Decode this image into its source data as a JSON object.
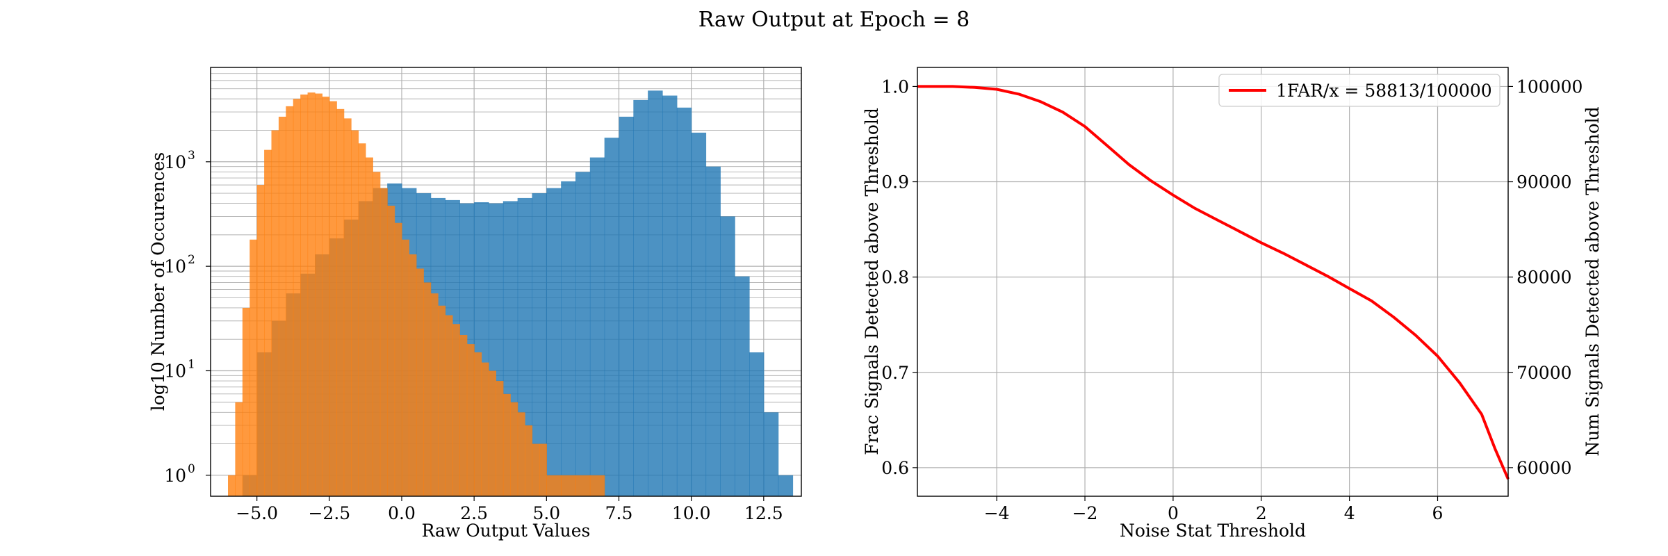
{
  "figure": {
    "title": "Raw Output at Epoch = 8"
  },
  "chart_data": [
    {
      "type": "bar",
      "subtype": "histogram",
      "xlabel": "Raw Output Values",
      "ylabel": "log10 Number of Occurences",
      "xlim": [
        -6.6,
        13.8
      ],
      "ylim": [
        0.63,
        8000
      ],
      "yscale": "log",
      "grid": true,
      "xticks": [
        -5.0,
        -2.5,
        0.0,
        2.5,
        5.0,
        7.5,
        10.0,
        12.5
      ],
      "xtick_labels": [
        "−5.0",
        "−2.5",
        "0.0",
        "2.5",
        "5.0",
        "7.5",
        "10.0",
        "12.5"
      ],
      "yticks": [
        1,
        10,
        100,
        1000
      ],
      "ytick_labels": [
        [
          "10",
          "0"
        ],
        [
          "10",
          "1"
        ],
        [
          "10",
          "2"
        ],
        [
          "10",
          "3"
        ]
      ],
      "series": [
        {
          "color": "#1f77b4",
          "alpha": 0.8,
          "points": [
            [
              -5.5,
              1
            ],
            [
              -5.0,
              15
            ],
            [
              -4.5,
              30
            ],
            [
              -4.0,
              55
            ],
            [
              -3.5,
              85
            ],
            [
              -3.0,
              130
            ],
            [
              -2.5,
              185
            ],
            [
              -2.0,
              280
            ],
            [
              -1.5,
              420
            ],
            [
              -1.0,
              560
            ],
            [
              -0.5,
              620
            ],
            [
              0.0,
              560
            ],
            [
              0.5,
              500
            ],
            [
              1.0,
              450
            ],
            [
              1.5,
              430
            ],
            [
              2.0,
              400
            ],
            [
              2.5,
              410
            ],
            [
              3.0,
              400
            ],
            [
              3.5,
              420
            ],
            [
              4.0,
              450
            ],
            [
              4.5,
              500
            ],
            [
              5.0,
              560
            ],
            [
              5.5,
              650
            ],
            [
              6.0,
              800
            ],
            [
              6.5,
              1100
            ],
            [
              7.0,
              1700
            ],
            [
              7.5,
              2700
            ],
            [
              8.0,
              3900
            ],
            [
              8.5,
              4800
            ],
            [
              9.0,
              4300
            ],
            [
              9.5,
              3300
            ],
            [
              10.0,
              1900
            ],
            [
              10.5,
              900
            ],
            [
              11.0,
              300
            ],
            [
              11.5,
              80
            ],
            [
              12.0,
              15
            ],
            [
              12.5,
              4
            ],
            [
              13.0,
              1
            ]
          ]
        },
        {
          "color": "#ff7f0e",
          "alpha": 0.8,
          "points": [
            [
              -6.0,
              1
            ],
            [
              -5.75,
              5
            ],
            [
              -5.5,
              40
            ],
            [
              -5.25,
              180
            ],
            [
              -5.0,
              600
            ],
            [
              -4.75,
              1300
            ],
            [
              -4.5,
              2000
            ],
            [
              -4.25,
              2700
            ],
            [
              -4.0,
              3400
            ],
            [
              -3.75,
              4000
            ],
            [
              -3.5,
              4400
            ],
            [
              -3.25,
              4600
            ],
            [
              -3.0,
              4500
            ],
            [
              -2.75,
              4200
            ],
            [
              -2.5,
              3800
            ],
            [
              -2.25,
              3200
            ],
            [
              -2.0,
              2600
            ],
            [
              -1.75,
              2000
            ],
            [
              -1.5,
              1500
            ],
            [
              -1.25,
              1100
            ],
            [
              -1.0,
              800
            ],
            [
              -0.75,
              560
            ],
            [
              -0.5,
              380
            ],
            [
              -0.25,
              260
            ],
            [
              0.0,
              180
            ],
            [
              0.25,
              130
            ],
            [
              0.5,
              95
            ],
            [
              0.75,
              70
            ],
            [
              1.0,
              55
            ],
            [
              1.25,
              42
            ],
            [
              1.5,
              34
            ],
            [
              1.75,
              28
            ],
            [
              2.0,
              22
            ],
            [
              2.25,
              18
            ],
            [
              2.5,
              15
            ],
            [
              2.75,
              12
            ],
            [
              3.0,
              10
            ],
            [
              3.25,
              8
            ],
            [
              3.5,
              6
            ],
            [
              3.75,
              5
            ],
            [
              4.0,
              4
            ],
            [
              4.25,
              3
            ],
            [
              4.5,
              2
            ],
            [
              4.75,
              2
            ],
            [
              5.0,
              1
            ],
            [
              5.5,
              1
            ],
            [
              6.0,
              1
            ],
            [
              6.5,
              1
            ]
          ]
        }
      ]
    },
    {
      "type": "line",
      "xlabel": "Noise Stat Threshold",
      "ylabel": "Frac Signals Detected above Threshold",
      "y2label": "Num Signals Detected above Threshold",
      "xlim": [
        -5.8,
        7.6
      ],
      "ylim": [
        0.57,
        1.02
      ],
      "y2lim": [
        57000,
        102000
      ],
      "grid": true,
      "legend_position": "top-right",
      "xticks": [
        -4,
        -2,
        0,
        2,
        4,
        6
      ],
      "xtick_labels": [
        "−4",
        "−2",
        "0",
        "2",
        "4",
        "6"
      ],
      "yticks": [
        0.6,
        0.7,
        0.8,
        0.9,
        1.0
      ],
      "ytick_labels": [
        "0.6",
        "0.7",
        "0.8",
        "0.9",
        "1.0"
      ],
      "y2ticks": [
        60000,
        70000,
        80000,
        90000,
        100000
      ],
      "y2tick_labels": [
        "60000",
        "70000",
        "80000",
        "90000",
        "100000"
      ],
      "series": [
        {
          "name": "1FAR/x = 58813/100000",
          "color": "#ff0000",
          "x": [
            -5.8,
            -5.0,
            -4.5,
            -4.0,
            -3.5,
            -3.0,
            -2.5,
            -2.0,
            -1.5,
            -1.0,
            -0.5,
            0.0,
            0.5,
            1.0,
            1.5,
            2.0,
            2.5,
            3.0,
            3.5,
            4.0,
            4.5,
            5.0,
            5.5,
            6.0,
            6.5,
            7.0,
            7.3,
            7.6
          ],
          "y": [
            1.0,
            1.0,
            0.999,
            0.997,
            0.992,
            0.984,
            0.973,
            0.958,
            0.938,
            0.918,
            0.901,
            0.886,
            0.872,
            0.86,
            0.848,
            0.836,
            0.825,
            0.813,
            0.801,
            0.788,
            0.775,
            0.758,
            0.739,
            0.717,
            0.689,
            0.656,
            0.62,
            0.588
          ]
        }
      ]
    }
  ]
}
